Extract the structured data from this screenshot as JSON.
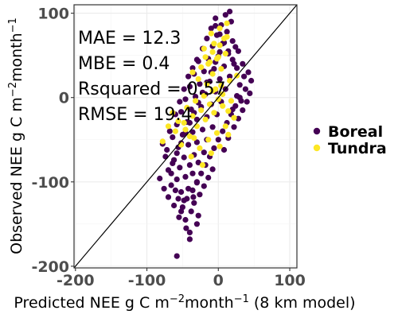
{
  "chart_data": {
    "type": "scatter",
    "xlabel_parts": [
      "Predicted NEE g C m",
      "−2",
      "month",
      "−1",
      " (8 km model)"
    ],
    "ylabel_parts": [
      "Observed NEE g C m",
      "−2",
      "month",
      "−1"
    ],
    "xlim": [
      -202,
      110
    ],
    "ylim": [
      -202,
      110
    ],
    "xticks": [
      -200,
      -100,
      0,
      100
    ],
    "yticks": [
      -200,
      -100,
      0,
      100
    ],
    "xtick_labels": [
      "-200",
      "-100",
      "0",
      "100"
    ],
    "ytick_labels": [
      "-200",
      "-100",
      "0",
      "100"
    ],
    "grid": true,
    "identity_line": true,
    "legend_position": "right",
    "annotations": [
      "MAE = 12.3",
      "MBE = 0.4",
      "Rsquared = 0.57",
      "RMSE = 19.4"
    ],
    "series": [
      {
        "name": "Boreal",
        "color": "#440154",
        "points": [
          [
            -58,
            -188
          ],
          [
            -40,
            -168
          ],
          [
            -45,
            -155
          ],
          [
            -30,
            -150
          ],
          [
            -55,
            -142
          ],
          [
            -38,
            -135
          ],
          [
            -62,
            -128
          ],
          [
            -48,
            -122
          ],
          [
            -35,
            -118
          ],
          [
            -52,
            -112
          ],
          [
            -42,
            -108
          ],
          [
            -66,
            -104
          ],
          [
            -30,
            -101
          ],
          [
            -58,
            -97
          ],
          [
            -46,
            -94
          ],
          [
            -36,
            -90
          ],
          [
            -70,
            -86
          ],
          [
            -54,
            -83
          ],
          [
            -40,
            -80
          ],
          [
            -28,
            -77
          ],
          [
            -62,
            -74
          ],
          [
            -48,
            -71
          ],
          [
            -34,
            -68
          ],
          [
            -20,
            -65
          ],
          [
            -72,
            -62
          ],
          [
            -56,
            -59
          ],
          [
            -42,
            -56
          ],
          [
            -30,
            -53
          ],
          [
            -16,
            -50
          ],
          [
            -64,
            -47
          ],
          [
            -50,
            -44
          ],
          [
            -36,
            -41
          ],
          [
            -22,
            -38
          ],
          [
            -8,
            -35
          ],
          [
            -58,
            -32
          ],
          [
            -44,
            -29
          ],
          [
            -30,
            -26
          ],
          [
            -16,
            -23
          ],
          [
            -2,
            -20
          ],
          [
            -52,
            -17
          ],
          [
            -38,
            -14
          ],
          [
            -24,
            -11
          ],
          [
            -10,
            -8
          ],
          [
            4,
            -5
          ],
          [
            -46,
            -2
          ],
          [
            -32,
            1
          ],
          [
            -18,
            4
          ],
          [
            -4,
            7
          ],
          [
            10,
            10
          ],
          [
            -40,
            13
          ],
          [
            -26,
            16
          ],
          [
            -12,
            19
          ],
          [
            2,
            22
          ],
          [
            16,
            25
          ],
          [
            -34,
            28
          ],
          [
            -20,
            31
          ],
          [
            -6,
            34
          ],
          [
            8,
            37
          ],
          [
            22,
            40
          ],
          [
            -28,
            43
          ],
          [
            -14,
            46
          ],
          [
            0,
            49
          ],
          [
            14,
            52
          ],
          [
            28,
            55
          ],
          [
            -22,
            58
          ],
          [
            -8,
            61
          ],
          [
            6,
            64
          ],
          [
            20,
            67
          ],
          [
            -16,
            70
          ],
          [
            -2,
            74
          ],
          [
            12,
            78
          ],
          [
            -10,
            82
          ],
          [
            4,
            86
          ],
          [
            18,
            90
          ],
          [
            -4,
            94
          ],
          [
            10,
            98
          ],
          [
            16,
            102
          ],
          [
            24,
            60
          ],
          [
            34,
            40
          ],
          [
            42,
            30
          ],
          [
            46,
            20
          ],
          [
            38,
            10
          ],
          [
            30,
            0
          ],
          [
            24,
            -10
          ],
          [
            18,
            -20
          ],
          [
            12,
            -30
          ],
          [
            6,
            -40
          ],
          [
            0,
            -50
          ],
          [
            -6,
            -60
          ],
          [
            -12,
            -70
          ],
          [
            -18,
            -80
          ],
          [
            -24,
            -90
          ],
          [
            -30,
            -100
          ],
          [
            -36,
            -110
          ],
          [
            -44,
            -120
          ],
          [
            -50,
            -130
          ],
          [
            -28,
            -140
          ],
          [
            -20,
            -105
          ],
          [
            -14,
            -95
          ],
          [
            -8,
            -85
          ],
          [
            -66,
            -90
          ],
          [
            -74,
            -70
          ],
          [
            -78,
            -55
          ],
          [
            -68,
            -40
          ],
          [
            -60,
            -20
          ],
          [
            -54,
            -5
          ],
          [
            -48,
            10
          ],
          [
            -42,
            25
          ],
          [
            -36,
            35
          ],
          [
            -30,
            45
          ],
          [
            30,
            15
          ],
          [
            36,
            25
          ],
          [
            26,
            35
          ],
          [
            20,
            45
          ],
          [
            14,
            55
          ],
          [
            8,
            65
          ],
          [
            2,
            75
          ],
          [
            -4,
            85
          ],
          [
            44,
            5
          ],
          [
            40,
            -5
          ],
          [
            34,
            -15
          ],
          [
            28,
            -25
          ],
          [
            22,
            -35
          ],
          [
            -60,
            -110
          ],
          [
            -56,
            -120
          ],
          [
            -52,
            -135
          ],
          [
            -46,
            -145
          ],
          [
            -40,
            -160
          ],
          [
            -34,
            -125
          ],
          [
            -26,
            -115
          ],
          [
            -82,
            -96
          ],
          [
            -76,
            -108
          ],
          [
            -70,
            -118
          ],
          [
            -64,
            -78
          ],
          [
            -58,
            -66
          ],
          [
            -52,
            -54
          ],
          [
            -46,
            -42
          ],
          [
            -40,
            -30
          ],
          [
            -34,
            -18
          ],
          [
            -28,
            -6
          ],
          [
            -22,
            6
          ],
          [
            -16,
            18
          ],
          [
            -10,
            30
          ],
          [
            -4,
            42
          ],
          [
            2,
            54
          ],
          [
            8,
            -62
          ],
          [
            14,
            -48
          ],
          [
            20,
            -14
          ],
          [
            26,
            2
          ],
          [
            32,
            -4
          ]
        ]
      },
      {
        "name": "Tundra",
        "color": "#fde725",
        "points": [
          [
            -78,
            -52
          ],
          [
            -60,
            -40
          ],
          [
            -48,
            -30
          ],
          [
            -36,
            -22
          ],
          [
            -24,
            -15
          ],
          [
            -12,
            -8
          ],
          [
            0,
            -2
          ],
          [
            6,
            4
          ],
          [
            -4,
            10
          ],
          [
            -16,
            16
          ],
          [
            -28,
            22
          ],
          [
            -8,
            28
          ],
          [
            4,
            34
          ],
          [
            -14,
            40
          ],
          [
            -2,
            46
          ],
          [
            10,
            52
          ],
          [
            -20,
            58
          ],
          [
            -6,
            64
          ],
          [
            8,
            70
          ],
          [
            -10,
            76
          ],
          [
            2,
            82
          ],
          [
            12,
            88
          ],
          [
            -30,
            -34
          ],
          [
            -18,
            -26
          ],
          [
            -6,
            -18
          ],
          [
            6,
            -10
          ],
          [
            18,
            -4
          ],
          [
            -40,
            -46
          ],
          [
            -26,
            -60
          ],
          [
            -14,
            -50
          ],
          [
            -2,
            -42
          ],
          [
            10,
            -34
          ],
          [
            22,
            -24
          ],
          [
            14,
            -16
          ],
          [
            -44,
            -12
          ],
          [
            -32,
            -4
          ],
          [
            -20,
            2
          ],
          [
            -8,
            8
          ],
          [
            4,
            14
          ],
          [
            16,
            20
          ],
          [
            26,
            26
          ],
          [
            -36,
            30
          ],
          [
            -24,
            36
          ],
          [
            -12,
            42
          ],
          [
            0,
            48
          ],
          [
            -52,
            -56
          ],
          [
            -38,
            -70
          ],
          [
            -22,
            -80
          ],
          [
            -10,
            -66
          ],
          [
            2,
            -58
          ],
          [
            14,
            -44
          ],
          [
            -46,
            -38
          ],
          [
            -34,
            -48
          ],
          [
            -56,
            -28
          ],
          [
            -64,
            -18
          ],
          [
            -70,
            -34
          ],
          [
            -8,
            54
          ],
          [
            -18,
            48
          ],
          [
            2,
            62
          ],
          [
            12,
            72
          ]
        ]
      }
    ]
  },
  "legend": [
    {
      "label": "Boreal",
      "color": "#440154"
    },
    {
      "label": "Tundra",
      "color": "#fde725"
    }
  ]
}
